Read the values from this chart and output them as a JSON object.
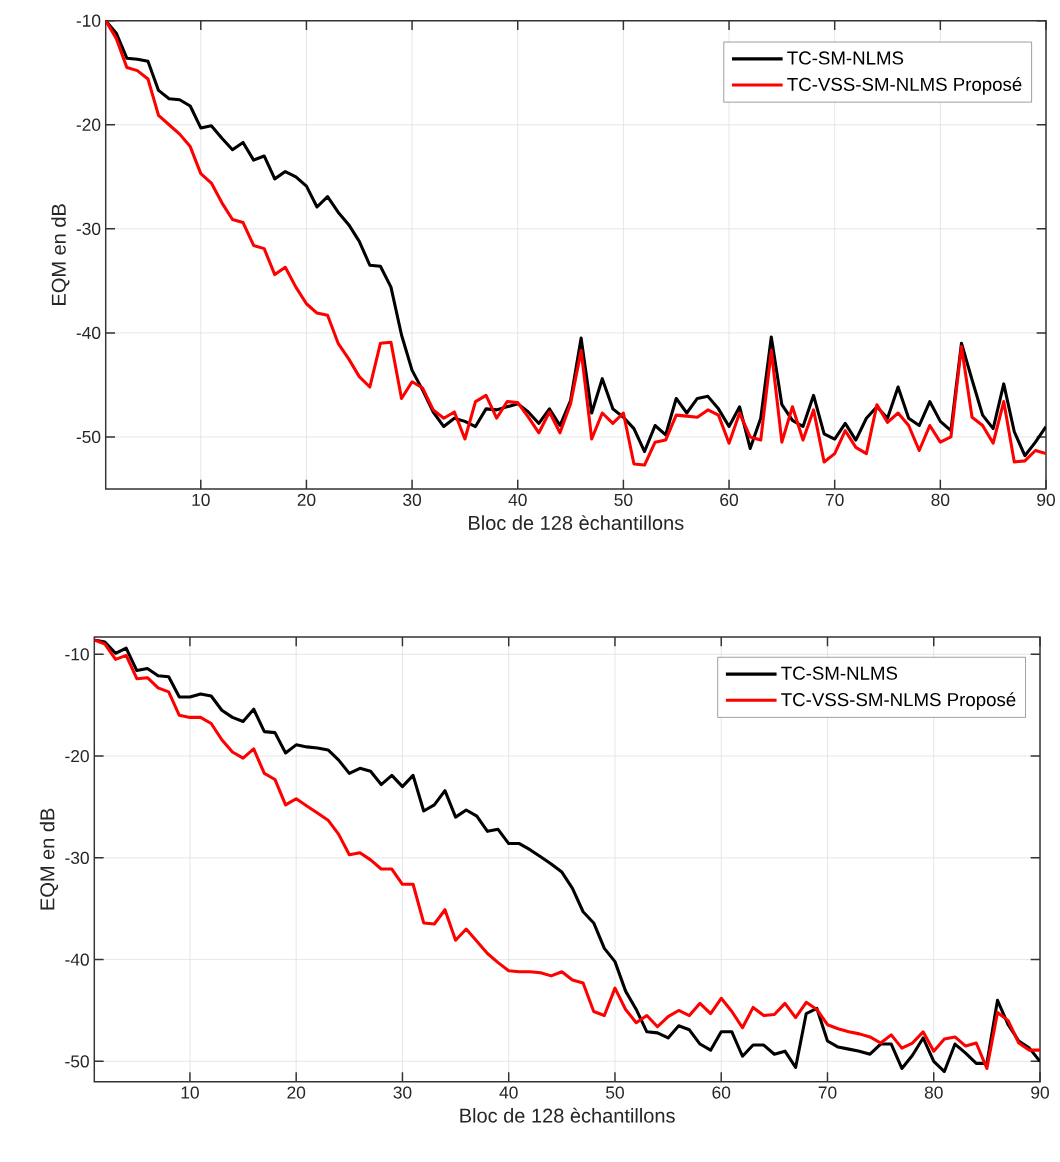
{
  "chart_data": [
    {
      "type": "line",
      "xlabel": "Bloc de 128 èchantillons",
      "ylabel": "EQM en dB",
      "x": [
        1,
        2,
        3,
        4,
        5,
        6,
        7,
        8,
        9,
        10,
        11,
        12,
        13,
        14,
        15,
        16,
        17,
        18,
        19,
        20,
        21,
        22,
        23,
        24,
        25,
        26,
        27,
        28,
        29,
        30,
        31,
        32,
        33,
        34,
        35,
        36,
        37,
        38,
        39,
        40,
        41,
        42,
        43,
        44,
        45,
        46,
        47,
        48,
        49,
        50,
        51,
        52,
        53,
        54,
        55,
        56,
        57,
        58,
        59,
        60,
        61,
        62,
        63,
        64,
        65,
        66,
        67,
        68,
        69,
        70,
        71,
        72,
        73,
        74,
        75,
        76,
        77,
        78,
        79,
        80,
        81,
        82,
        83,
        84,
        85,
        86,
        87,
        88,
        89,
        90
      ],
      "series": [
        {
          "name": "TC-SM-NLMS",
          "color": "#000000",
          "values": [
            -10,
            -11.2,
            -13.6,
            -13.7,
            -13.9,
            -16.7,
            -17.5,
            -17.6,
            -18.2,
            -20.3,
            -20.1,
            -21.3,
            -22.4,
            -21.7,
            -23.4,
            -23.0,
            -25.2,
            -24.5,
            -25.0,
            -25.9,
            -27.9,
            -26.9,
            -28.4,
            -29.6,
            -31.2,
            -33.5,
            -33.6,
            -35.6,
            -40.2,
            -43.6,
            -45.5,
            -47.6,
            -49.0,
            -48.2,
            -48.5,
            -49.0,
            -47.3,
            -47.4,
            -47.1,
            -46.8,
            -47.6,
            -48.7,
            -47.3,
            -48.9,
            -46.5,
            -40.5,
            -47.7,
            -44.4,
            -47.3,
            -48.1,
            -49.2,
            -51.4,
            -48.9,
            -49.8,
            -46.3,
            -47.7,
            -46.3,
            -46.1,
            -47.3,
            -49.0,
            -47.1,
            -51.1,
            -48.2,
            -40.4,
            -46.9,
            -48.4,
            -49.0,
            -46.0,
            -49.7,
            -50.2,
            -48.7,
            -50.3,
            -48.2,
            -47.1,
            -48.2,
            -45.2,
            -48.2,
            -48.9,
            -46.6,
            -48.5,
            -49.4,
            -41.0,
            -44.5,
            -47.9,
            -49.2,
            -44.9,
            -49.5,
            -51.8,
            -50.5,
            -49.0
          ]
        },
        {
          "name": "TC-VSS-SM-NLMS Proposé",
          "color": "#ff0000",
          "values": [
            -10,
            -11.7,
            -14.5,
            -14.8,
            -15.6,
            -19.1,
            -20.0,
            -20.9,
            -22.1,
            -24.7,
            -25.6,
            -27.5,
            -29.1,
            -29.4,
            -31.6,
            -31.9,
            -34.4,
            -33.7,
            -35.6,
            -37.2,
            -38.1,
            -38.3,
            -41.0,
            -42.5,
            -44.2,
            -45.2,
            -41.0,
            -40.9,
            -46.3,
            -44.7,
            -45.3,
            -47.4,
            -48.2,
            -47.6,
            -50.2,
            -46.6,
            -46.0,
            -48.2,
            -46.6,
            -46.7,
            -48.1,
            -49.6,
            -47.6,
            -49.6,
            -46.8,
            -41.7,
            -50.2,
            -47.7,
            -48.7,
            -47.7,
            -52.6,
            -52.7,
            -50.5,
            -50.3,
            -47.9,
            -48.0,
            -48.1,
            -47.4,
            -47.9,
            -50.6,
            -47.7,
            -50.0,
            -50.3,
            -41.7,
            -50.5,
            -47.1,
            -50.3,
            -47.4,
            -52.4,
            -51.6,
            -49.4,
            -51.0,
            -51.6,
            -46.9,
            -48.6,
            -47.7,
            -48.9,
            -51.3,
            -48.9,
            -50.5,
            -50.0,
            -41.3,
            -48.1,
            -48.9,
            -50.6,
            -46.6,
            -52.4,
            -52.3,
            -51.3,
            -51.6
          ]
        }
      ],
      "xlim": [
        1,
        90
      ],
      "ylim": [
        -55,
        -10
      ],
      "xticks": [
        10,
        20,
        30,
        40,
        50,
        60,
        70,
        80,
        90
      ],
      "yticks": [
        -50,
        -40,
        -30,
        -20,
        -10
      ],
      "grid": true,
      "legend": "top right"
    },
    {
      "type": "line",
      "xlabel": "Bloc de 128 èchantillons",
      "ylabel": "EQM en dB",
      "x": [
        1,
        2,
        3,
        4,
        5,
        6,
        7,
        8,
        9,
        10,
        11,
        12,
        13,
        14,
        15,
        16,
        17,
        18,
        19,
        20,
        21,
        22,
        23,
        24,
        25,
        26,
        27,
        28,
        29,
        30,
        31,
        32,
        33,
        34,
        35,
        36,
        37,
        38,
        39,
        40,
        41,
        42,
        43,
        44,
        45,
        46,
        47,
        48,
        49,
        50,
        51,
        52,
        53,
        54,
        55,
        56,
        57,
        58,
        59,
        60,
        61,
        62,
        63,
        64,
        65,
        66,
        67,
        68,
        69,
        70,
        71,
        72,
        73,
        74,
        75,
        76,
        77,
        78,
        79,
        80,
        81,
        82,
        83,
        84,
        85,
        86,
        87,
        88,
        89,
        90
      ],
      "series": [
        {
          "name": "TC-SM-NLMS",
          "color": "#000000",
          "values": [
            -8.6,
            -8.8,
            -9.9,
            -9.4,
            -11.6,
            -11.4,
            -12.1,
            -12.2,
            -14.2,
            -14.2,
            -13.9,
            -14.1,
            -15.5,
            -16.2,
            -16.6,
            -15.4,
            -17.6,
            -17.7,
            -19.7,
            -18.9,
            -19.1,
            -19.2,
            -19.4,
            -20.4,
            -21.7,
            -21.2,
            -21.5,
            -22.8,
            -21.9,
            -23.0,
            -21.9,
            -25.4,
            -24.8,
            -23.4,
            -26.0,
            -25.3,
            -25.9,
            -27.4,
            -27.2,
            -28.6,
            -28.6,
            -29.2,
            -29.9,
            -30.6,
            -31.4,
            -33.0,
            -35.3,
            -36.4,
            -38.9,
            -40.2,
            -43.1,
            -44.9,
            -47.1,
            -47.2,
            -47.7,
            -46.5,
            -46.9,
            -48.3,
            -48.9,
            -47.1,
            -47.1,
            -49.5,
            -48.4,
            -48.4,
            -49.3,
            -49.0,
            -50.6,
            -45.3,
            -44.8,
            -48.0,
            -48.6,
            -48.8,
            -49.0,
            -49.3,
            -48.3,
            -48.3,
            -50.7,
            -49.4,
            -47.7,
            -50.0,
            -51.0,
            -48.3,
            -49.2,
            -50.2,
            -50.2,
            -44.0,
            -46.4,
            -48.0,
            -48.7,
            -50.0
          ]
        },
        {
          "name": "TC-VSS-SM-NLMS Proposé",
          "color": "#ff0000",
          "values": [
            -8.6,
            -9.0,
            -10.5,
            -10.1,
            -12.4,
            -12.3,
            -13.3,
            -13.7,
            -16.0,
            -16.2,
            -16.2,
            -16.8,
            -18.4,
            -19.6,
            -20.2,
            -19.3,
            -21.7,
            -22.3,
            -24.8,
            -24.2,
            -24.9,
            -25.6,
            -26.3,
            -27.7,
            -29.7,
            -29.5,
            -30.2,
            -31.1,
            -31.1,
            -32.6,
            -32.6,
            -36.4,
            -36.5,
            -35.1,
            -38.1,
            -37.0,
            -38.2,
            -39.4,
            -40.3,
            -41.1,
            -41.2,
            -41.2,
            -41.3,
            -41.6,
            -41.2,
            -42.0,
            -42.3,
            -45.1,
            -45.5,
            -42.8,
            -44.9,
            -46.2,
            -45.5,
            -46.6,
            -45.6,
            -45.0,
            -45.5,
            -44.3,
            -45.3,
            -43.8,
            -45.1,
            -46.7,
            -44.7,
            -45.5,
            -45.4,
            -44.3,
            -45.7,
            -44.2,
            -44.9,
            -46.4,
            -46.8,
            -47.1,
            -47.3,
            -47.6,
            -48.2,
            -47.4,
            -48.7,
            -48.2,
            -47.1,
            -49.0,
            -47.8,
            -47.6,
            -48.5,
            -48.2,
            -50.7,
            -45.2,
            -46.0,
            -48.2,
            -48.9,
            -48.9
          ]
        }
      ],
      "xlim": [
        1,
        90
      ],
      "ylim": [
        -52,
        -8.3
      ],
      "xticks": [
        10,
        20,
        30,
        40,
        50,
        60,
        70,
        80,
        90
      ],
      "yticks": [
        -50,
        -40,
        -30,
        -20,
        -10
      ],
      "grid": true,
      "legend": "top right"
    }
  ]
}
